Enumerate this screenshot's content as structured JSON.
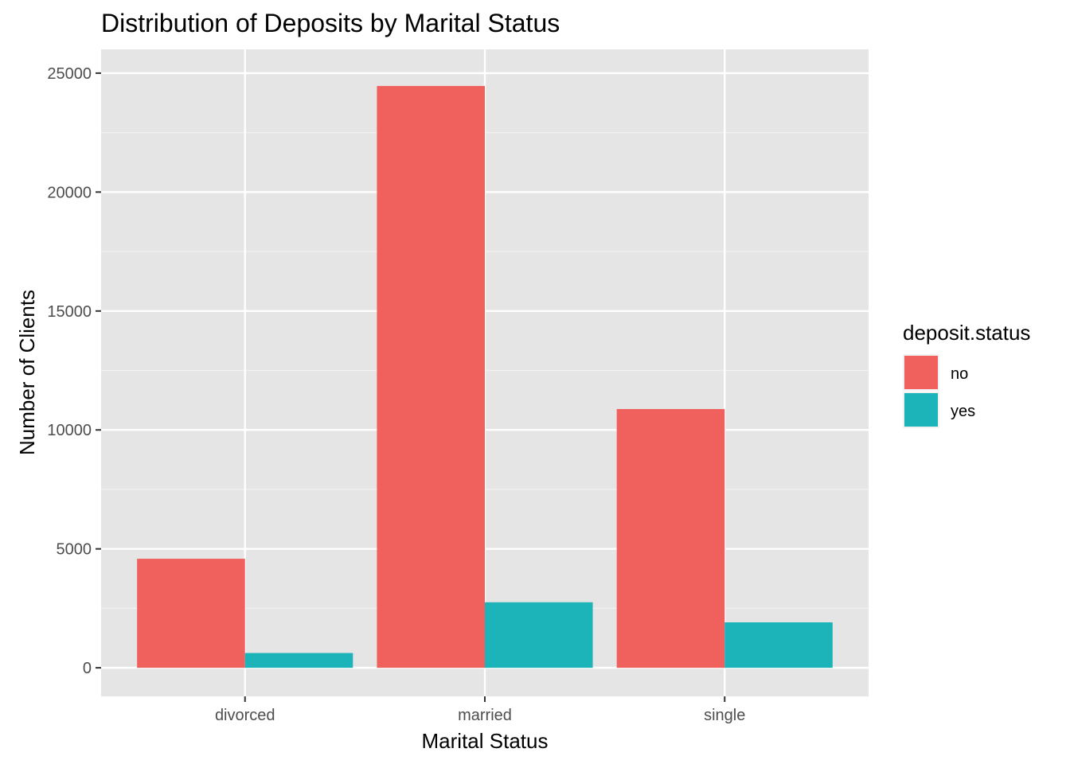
{
  "chart_data": {
    "type": "bar",
    "title": "Distribution of Deposits by Marital Status",
    "xlabel": "Marital Status",
    "ylabel": "Number of Clients",
    "categories": [
      "divorced",
      "married",
      "single"
    ],
    "series": [
      {
        "name": "no",
        "values": [
          4585,
          24459,
          10878
        ],
        "color": "#f0605d"
      },
      {
        "name": "yes",
        "values": [
          622,
          2755,
          1912
        ],
        "color": "#1cb4b8"
      }
    ],
    "ylim": [
      -1200,
      26000
    ],
    "yticks": [
      0,
      5000,
      10000,
      15000,
      20000,
      25000
    ],
    "ytick_labels": [
      "0",
      "5000",
      "10000",
      "15000",
      "20000",
      "25000"
    ],
    "grid": true,
    "legend": {
      "title": "deposit.status",
      "position": "right"
    },
    "panel_color": "#e5e5e5"
  }
}
